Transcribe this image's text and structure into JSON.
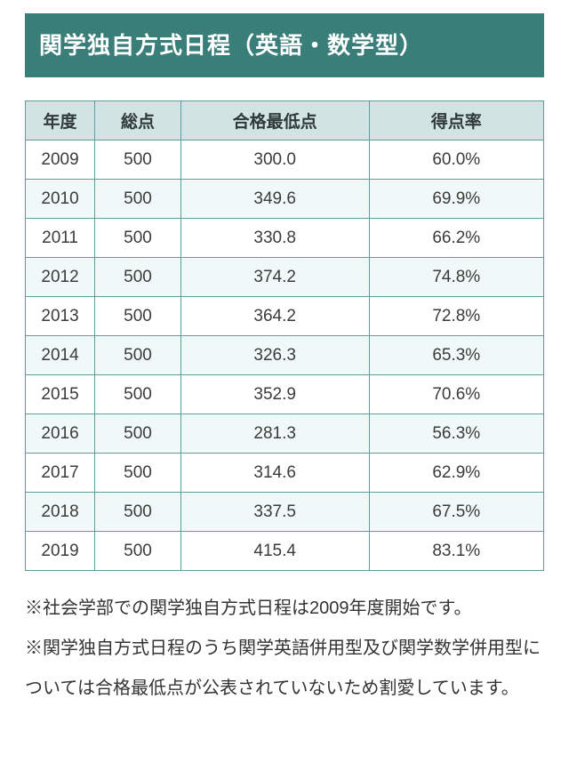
{
  "banner": {
    "title": "関学独自方式日程（英語・数学型）",
    "background_color": "#3a7e79",
    "text_color": "#ffffff"
  },
  "table": {
    "columns": [
      "年度",
      "総点",
      "合格最低点",
      "得点率"
    ],
    "rows": [
      [
        "2009",
        "500",
        "300.0",
        "60.0%"
      ],
      [
        "2010",
        "500",
        "349.6",
        "69.9%"
      ],
      [
        "2011",
        "500",
        "330.8",
        "66.2%"
      ],
      [
        "2012",
        "500",
        "374.2",
        "74.8%"
      ],
      [
        "2013",
        "500",
        "364.2",
        "72.8%"
      ],
      [
        "2014",
        "500",
        "326.3",
        "65.3%"
      ],
      [
        "2015",
        "500",
        "352.9",
        "70.6%"
      ],
      [
        "2016",
        "500",
        "281.3",
        "56.3%"
      ],
      [
        "2017",
        "500",
        "314.6",
        "62.9%"
      ],
      [
        "2018",
        "500",
        "337.5",
        "67.5%"
      ],
      [
        "2019",
        "500",
        "415.4",
        "83.1%"
      ]
    ],
    "header_background": "#d1e4e3",
    "border_color": "#5f9e9a",
    "alt_row_background": "#f1f8f8"
  },
  "notes": [
    "※社会学部での関学独自方式日程は2009年度開始です。",
    "※関学独自方式日程のうち関学英語併用型及び関学数学併用型については合格最低点が公表されていないため割愛しています。"
  ]
}
